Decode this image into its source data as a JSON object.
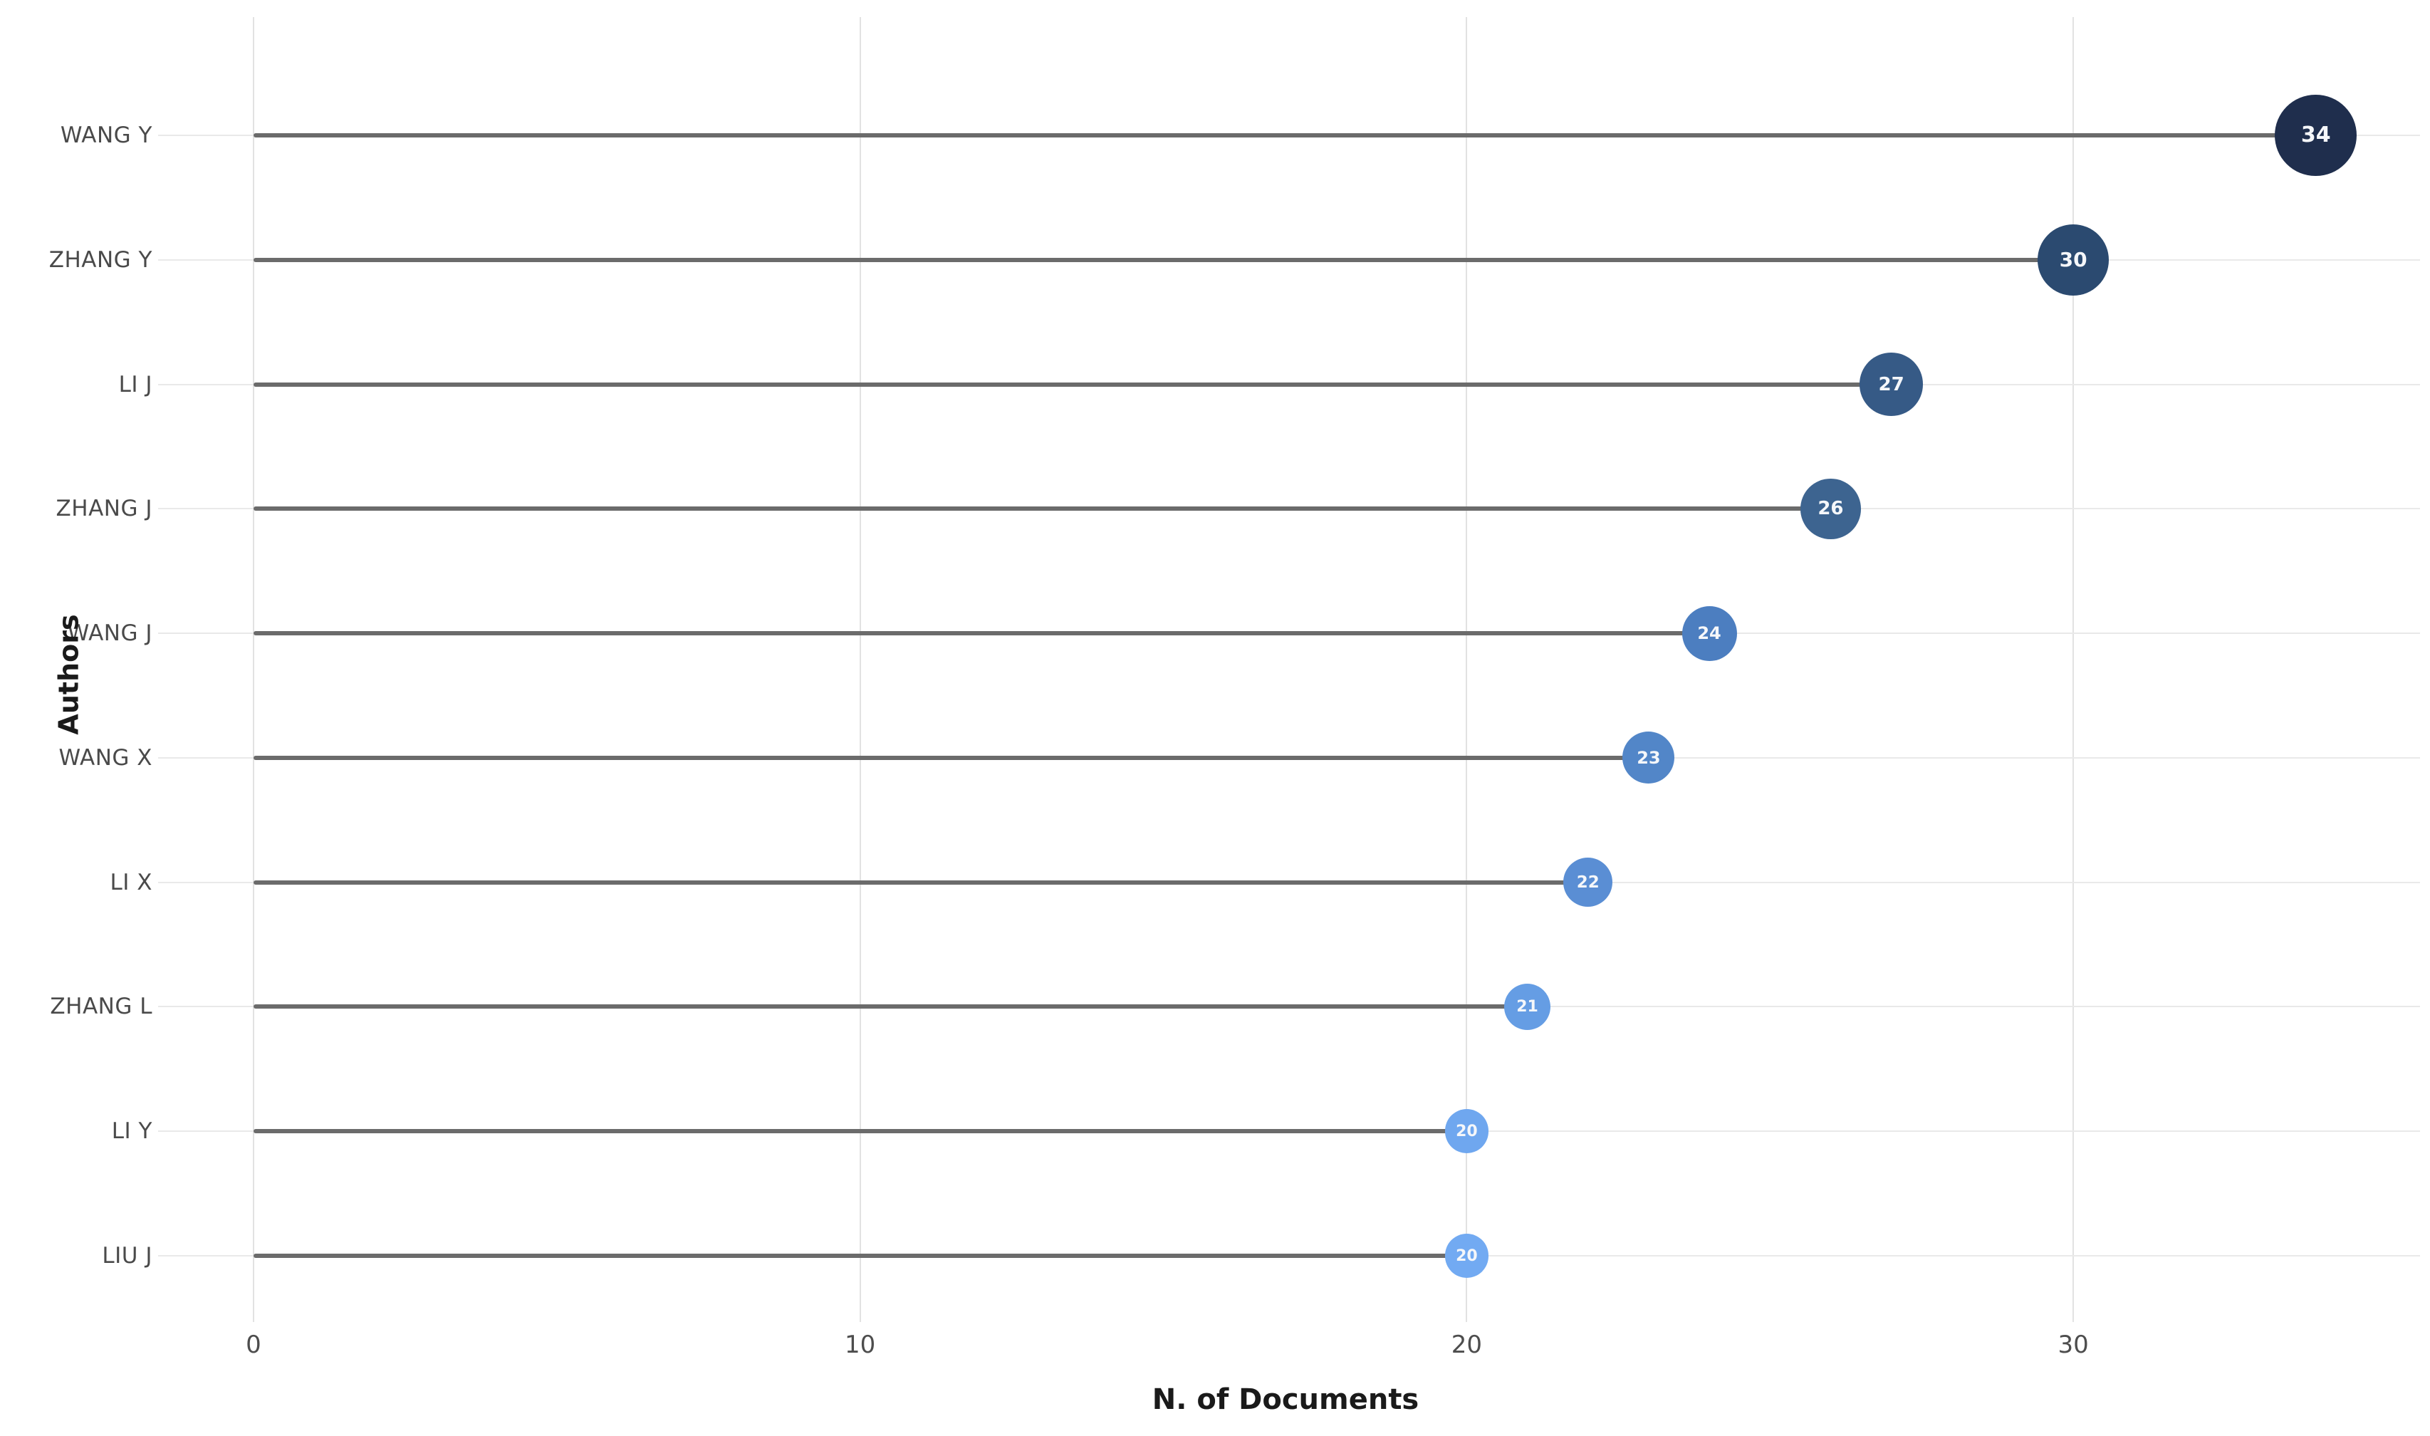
{
  "chart_data": {
    "type": "bar",
    "variant": "horizontal-lollipop",
    "title": "",
    "xlabel": "N. of Documents",
    "ylabel": "Authors",
    "categories": [
      "WANG Y",
      "ZHANG Y",
      "LI J",
      "ZHANG J",
      "WANG J",
      "WANG X",
      "LI X",
      "ZHANG L",
      "LI Y",
      "LIU J"
    ],
    "values": [
      34,
      30,
      27,
      26,
      24,
      23,
      22,
      21,
      20,
      20
    ],
    "point_colors": [
      "#1f2e4d",
      "#2b4a70",
      "#365a86",
      "#3d6490",
      "#4c7ec0",
      "#5286c8",
      "#5a8ed4",
      "#659de4",
      "#6fa7ef",
      "#72aaf2"
    ],
    "xticks": [
      0,
      10,
      20,
      30
    ],
    "xlim": [
      0,
      35.7
    ],
    "grid": {
      "vertical_major": true,
      "horizontal_rows": true,
      "minor": false
    },
    "legend": "none"
  },
  "colors": {
    "background": "#ffffff",
    "stem": "#6b6b6b",
    "row_line": "#e9e9e9",
    "grid_line": "#e2e2e2",
    "tick_label": "#4d4d4d",
    "category_label": "#4a4a4a",
    "axis_title": "#1a1a1a",
    "point_text": "#f5f7fa"
  }
}
